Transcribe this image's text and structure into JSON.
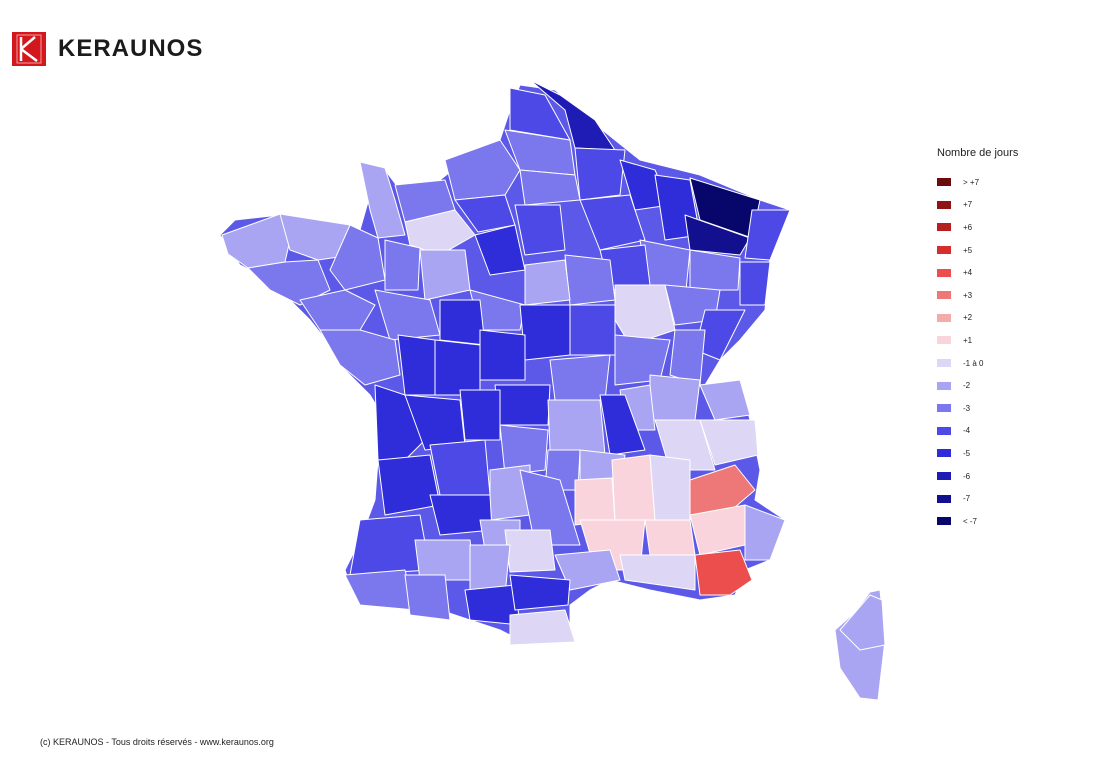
{
  "brand": {
    "name": "KERAUNOS",
    "accent": "#d3171c"
  },
  "legend": {
    "title": "Nombre de jours",
    "items": [
      {
        "label": "> +7",
        "color": "#6b0d0d"
      },
      {
        "label": "+7",
        "color": "#8f1515"
      },
      {
        "label": "+6",
        "color": "#b41f1f"
      },
      {
        "label": "+5",
        "color": "#d62d2d"
      },
      {
        "label": "+4",
        "color": "#ec4d4d"
      },
      {
        "label": "+3",
        "color": "#ee7878"
      },
      {
        "label": "+2",
        "color": "#f5aaaa"
      },
      {
        "label": "+1",
        "color": "#f9d4dd"
      },
      {
        "label": "-1 à 0",
        "color": "#ddd6f4"
      },
      {
        "label": "-2",
        "color": "#aaa5f2"
      },
      {
        "label": "-3",
        "color": "#7b77ec"
      },
      {
        "label": "-4",
        "color": "#4d49e6"
      },
      {
        "label": "-5",
        "color": "#2f2cda"
      },
      {
        "label": "-6",
        "color": "#1f1cb6"
      },
      {
        "label": "-7",
        "color": "#13108f"
      },
      {
        "label": "< -7",
        "color": "#07066b"
      }
    ]
  },
  "footer": {
    "text": "(c) KERAUNOS - Tous droits réservés - www.keraunos.org"
  }
}
